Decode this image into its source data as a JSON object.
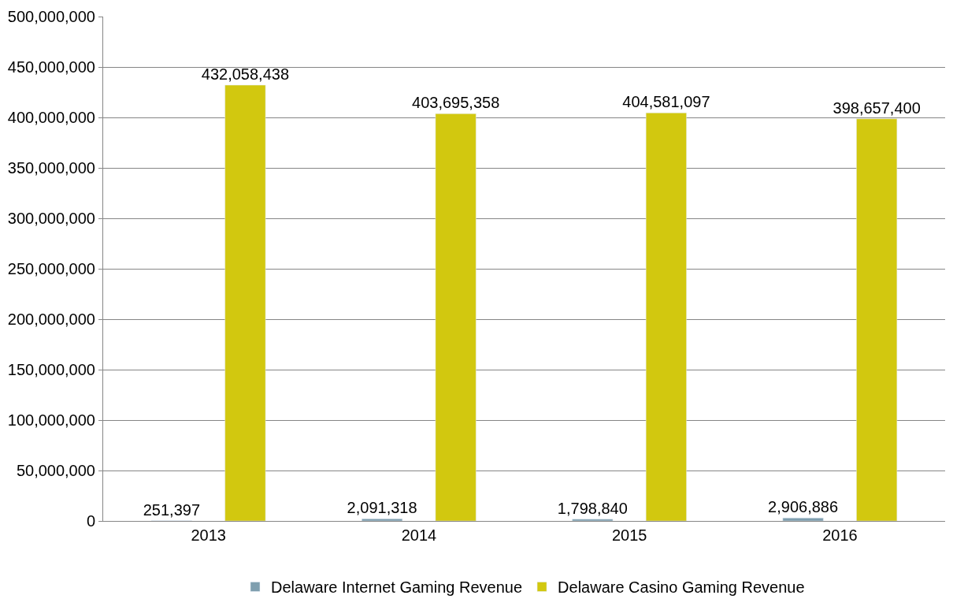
{
  "chart_data": {
    "type": "bar",
    "categories": [
      "2013",
      "2014",
      "2015",
      "2016"
    ],
    "series": [
      {
        "name": "Delaware Internet Gaming Revenue",
        "color": "#7f9faf",
        "values": [
          251397,
          2091318,
          1798840,
          2906886
        ],
        "value_labels": [
          "251,397",
          "2,091,318",
          "1,798,840",
          "2,906,886"
        ]
      },
      {
        "name": "Delaware Casino Gaming Revenue",
        "color": "#d2c80f",
        "values": [
          432058438,
          403695358,
          404581097,
          398657400
        ],
        "value_labels": [
          "432,058,438",
          "403,695,358",
          "404,581,097",
          "398,657,400"
        ]
      }
    ],
    "ylim": [
      0,
      500000000
    ],
    "yticks": [
      {
        "value": 0,
        "label": "0"
      },
      {
        "value": 50000000,
        "label": "50,000,000"
      },
      {
        "value": 100000000,
        "label": "100,000,000"
      },
      {
        "value": 150000000,
        "label": "150,000,000"
      },
      {
        "value": 200000000,
        "label": "200,000,000"
      },
      {
        "value": 250000000,
        "label": "250,000,000"
      },
      {
        "value": 300000000,
        "label": "300,000,000"
      },
      {
        "value": 350000000,
        "label": "350,000,000"
      },
      {
        "value": 400000000,
        "label": "400,000,000"
      },
      {
        "value": 450000000,
        "label": "450,000,000"
      },
      {
        "value": 500000000,
        "label": "500,000,000"
      }
    ],
    "grid": "y",
    "legend": "bottom"
  }
}
